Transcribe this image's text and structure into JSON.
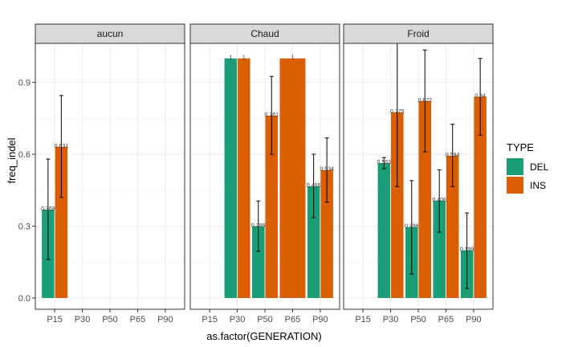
{
  "chart_data": {
    "type": "bar",
    "xlabel": "as.factor(GENERATION)",
    "ylabel": "freq_indel",
    "categories": [
      "P15",
      "P30",
      "P50",
      "P65",
      "P90"
    ],
    "ylim": [
      0,
      1.13
    ],
    "yticks": [
      0.0,
      0.3,
      0.6,
      0.9
    ],
    "ytick_labels": [
      "0.0",
      "0.3",
      "0.6",
      "0.9"
    ],
    "grid": true,
    "legend": {
      "title": "TYPE",
      "position": "right",
      "entries": [
        {
          "name": "DEL",
          "color": "#1b9e77"
        },
        {
          "name": "INS",
          "color": "#d95f02"
        }
      ]
    },
    "panels": [
      {
        "name": "aucun",
        "bars": [
          {
            "category": "P15",
            "type": "DEL",
            "value": 0.369,
            "label": "0.369",
            "err_low": 0.16,
            "err_high": 0.58
          },
          {
            "category": "P15",
            "type": "INS",
            "value": 0.631,
            "label": "0.631",
            "err_low": 0.42,
            "err_high": 0.845
          }
        ]
      },
      {
        "name": "Chaud",
        "bars": [
          {
            "category": "P30",
            "type": "DEL",
            "value": 1,
            "label": "1"
          },
          {
            "category": "P30",
            "type": "INS",
            "value": 1,
            "label": "1"
          },
          {
            "category": "P50",
            "type": "DEL",
            "value": 0.299,
            "label": "0.299",
            "err_low": 0.195,
            "err_high": 0.405
          },
          {
            "category": "P50",
            "type": "INS",
            "value": 0.761,
            "label": "0.761",
            "err_low": 0.6,
            "err_high": 0.925
          },
          {
            "category": "P65",
            "type": "INS",
            "value": 1,
            "label": "1",
            "solo": true
          },
          {
            "category": "P90",
            "type": "DEL",
            "value": 0.466,
            "label": "0.466",
            "err_low": 0.335,
            "err_high": 0.6
          },
          {
            "category": "P90",
            "type": "INS",
            "value": 0.534,
            "label": "0.534",
            "err_low": 0.4,
            "err_high": 0.668
          }
        ]
      },
      {
        "name": "Froid",
        "bars": [
          {
            "category": "P30",
            "type": "DEL",
            "value": 0.563,
            "label": "0.563",
            "err_low": 0.54,
            "err_high": 0.586
          },
          {
            "category": "P30",
            "type": "INS",
            "value": 0.775,
            "label": "0.775",
            "err_low": 0.465,
            "err_high": 1.085
          },
          {
            "category": "P50",
            "type": "DEL",
            "value": 0.296,
            "label": "0.296",
            "err_low": 0.1,
            "err_high": 0.49
          },
          {
            "category": "P50",
            "type": "INS",
            "value": 0.822,
            "label": "0.822",
            "err_low": 0.61,
            "err_high": 1.035
          },
          {
            "category": "P65",
            "type": "DEL",
            "value": 0.406,
            "label": "0.406",
            "err_low": 0.275,
            "err_high": 0.535
          },
          {
            "category": "P65",
            "type": "INS",
            "value": 0.594,
            "label": "0.594",
            "err_low": 0.465,
            "err_high": 0.725
          },
          {
            "category": "P90",
            "type": "DEL",
            "value": 0.199,
            "label": "0.199",
            "err_low": 0.04,
            "err_high": 0.355
          },
          {
            "category": "P90",
            "type": "INS",
            "value": 0.84,
            "label": "0.84",
            "err_low": 0.68,
            "err_high": 1.0
          }
        ]
      }
    ]
  }
}
